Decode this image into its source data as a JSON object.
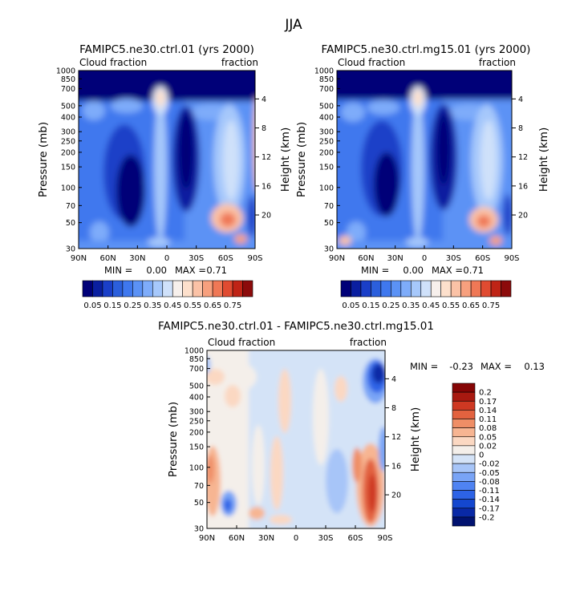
{
  "figure": {
    "title": "JJA"
  },
  "palettes": {
    "cloud": [
      "#000078",
      "#0a1fa0",
      "#1a3fc8",
      "#2b5fdc",
      "#3f78ee",
      "#5b92f5",
      "#7eacfa",
      "#a6c8fb",
      "#cfe1fa",
      "#f7f0ec",
      "#fde0cc",
      "#fbc2a6",
      "#f7a07e",
      "#ef7856",
      "#e04b31",
      "#bf2416",
      "#8c0b0b"
    ],
    "diff": [
      "#011270",
      "#0929a6",
      "#1447cf",
      "#2d63e6",
      "#4f83f2",
      "#79a4f6",
      "#a7c5f8",
      "#d4e3f7",
      "#f4efea",
      "#fbd8c2",
      "#f7b592",
      "#ef8e66",
      "#e2623f",
      "#ce3822",
      "#a81910",
      "#850505"
    ]
  },
  "chart_data": [
    {
      "type": "heatmap",
      "title": "FAMIPC5.ne30.ctrl.01 (yrs 2000)",
      "left_subtitle": "Cloud fraction",
      "right_subtitle": "fraction",
      "ylabel": "Pressure (mb)",
      "ylabel_right": "Height (km)",
      "x_ticks": [
        "90N",
        "60N",
        "30N",
        "0",
        "30S",
        "60S",
        "90S"
      ],
      "y_ticks": [
        "1000",
        "850",
        "700",
        "500",
        "400",
        "300",
        "250",
        "200",
        "150",
        "100",
        "70",
        "50",
        "30"
      ],
      "height_ticks": [
        "4",
        "8",
        "12",
        "16",
        "20"
      ],
      "min_label": "MIN =",
      "min_value": "0.00",
      "max_label": "MAX =",
      "max_value": "0.71",
      "levels": [
        "0.05",
        "0.15",
        "0.25",
        "0.35",
        "0.45",
        "0.55",
        "0.65",
        "0.75"
      ],
      "ylim": [
        1000,
        30
      ],
      "xlim": [
        90,
        -90
      ]
    },
    {
      "type": "heatmap",
      "title": "FAMIPC5.ne30.ctrl.mg15.01 (yrs 2000)",
      "left_subtitle": "Cloud fraction",
      "right_subtitle": "fraction",
      "ylabel": "Pressure (mb)",
      "ylabel_right": "Height (km)",
      "x_ticks": [
        "90N",
        "60N",
        "30N",
        "0",
        "30S",
        "60S",
        "90S"
      ],
      "y_ticks": [
        "1000",
        "850",
        "700",
        "500",
        "400",
        "300",
        "250",
        "200",
        "150",
        "100",
        "70",
        "50",
        "30"
      ],
      "height_ticks": [
        "4",
        "8",
        "12",
        "16",
        "20"
      ],
      "min_label": "MIN =",
      "min_value": "0.00",
      "max_label": "MAX =",
      "max_value": "0.71",
      "levels": [
        "0.05",
        "0.15",
        "0.25",
        "0.35",
        "0.45",
        "0.55",
        "0.65",
        "0.75"
      ],
      "ylim": [
        1000,
        30
      ],
      "xlim": [
        90,
        -90
      ]
    },
    {
      "type": "heatmap",
      "title": "FAMIPC5.ne30.ctrl.01 - FAMIPC5.ne30.ctrl.mg15.01",
      "left_subtitle": "Cloud fraction",
      "right_subtitle": "fraction",
      "ylabel": "Pressure (mb)",
      "ylabel_right": "Height (km)",
      "x_ticks": [
        "90N",
        "60N",
        "30N",
        "0",
        "30S",
        "60S",
        "90S"
      ],
      "y_ticks": [
        "1000",
        "850",
        "700",
        "500",
        "400",
        "300",
        "250",
        "200",
        "150",
        "100",
        "70",
        "50",
        "30"
      ],
      "height_ticks": [
        "4",
        "8",
        "12",
        "16",
        "20"
      ],
      "min_label": "MIN =",
      "min_value": "-0.23",
      "max_label": "MAX =",
      "max_value": "0.13",
      "levels": [
        "0.2",
        "0.17",
        "0.14",
        "0.11",
        "0.08",
        "0.05",
        "0.02",
        "0",
        "-0.02",
        "-0.05",
        "-0.08",
        "-0.11",
        "-0.14",
        "-0.17",
        "-0.2"
      ],
      "ylim": [
        1000,
        30
      ],
      "xlim": [
        90,
        -90
      ]
    }
  ]
}
